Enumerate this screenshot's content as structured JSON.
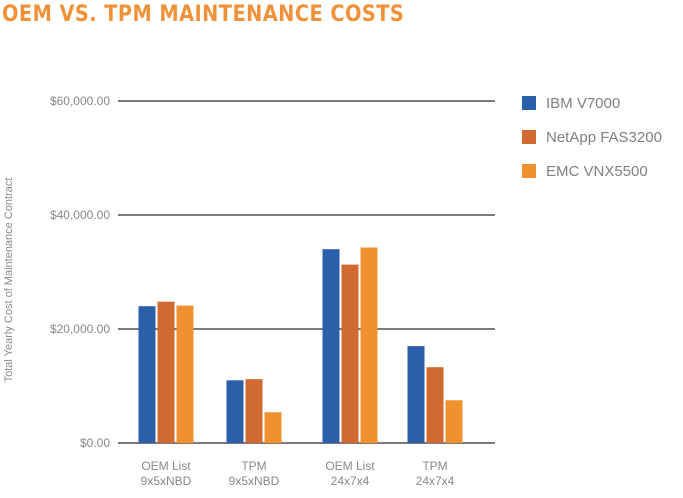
{
  "chart_data": {
    "type": "bar",
    "title": "OEM VS. TPM MAINTENANCE COSTS",
    "ylabel": "Total Yearly Cost of Maintenance Contract",
    "xlabel": "",
    "ylim": [
      0,
      60000
    ],
    "yticks": [
      0,
      20000,
      40000,
      60000
    ],
    "ytick_labels": [
      "$0.00",
      "$20,000.00",
      "$40,000.00",
      "$60,000.00"
    ],
    "grid": true,
    "legend_position": "right",
    "categories": [
      [
        "OEM List",
        "9x5xNBD"
      ],
      [
        "TPM",
        "9x5xNBD"
      ],
      [
        "OEM List",
        "24x7x4"
      ],
      [
        "TPM",
        "24x7x4"
      ]
    ],
    "series": [
      {
        "name": "IBM V7000",
        "color": "#2c5faa",
        "values": [
          24000,
          11000,
          34000,
          17000
        ]
      },
      {
        "name": "NetApp FAS3200",
        "color": "#d06a30",
        "values": [
          24800,
          11200,
          31300,
          13300
        ]
      },
      {
        "name": "EMC VNX5500",
        "color": "#f0912f",
        "values": [
          24100,
          5400,
          34300,
          7500
        ]
      }
    ]
  }
}
